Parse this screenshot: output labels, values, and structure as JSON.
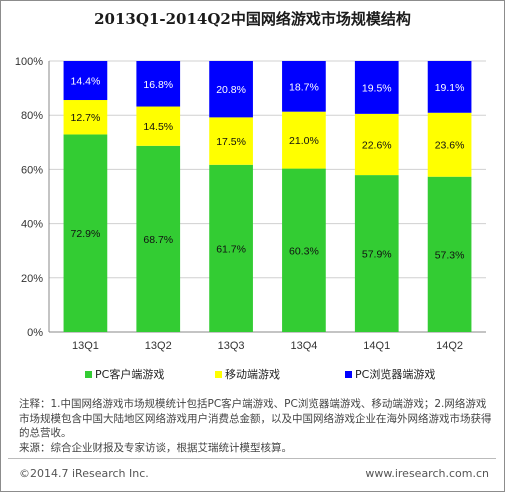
{
  "chart_data": {
    "type": "bar",
    "stacked": true,
    "title": "2013Q1-2014Q2中国网络游戏市场规模结构",
    "categories": [
      "13Q1",
      "13Q2",
      "13Q3",
      "13Q4",
      "14Q1",
      "14Q2"
    ],
    "series": [
      {
        "name": "PC客户端游戏",
        "color": "#33cc33",
        "values": [
          72.9,
          68.7,
          61.7,
          60.3,
          57.9,
          57.3
        ],
        "labels": [
          "72.9%",
          "68.7%",
          "61.7%",
          "60.3%",
          "57.9%",
          "57.3%"
        ]
      },
      {
        "name": "移动端游戏",
        "color": "#ffff00",
        "values": [
          12.7,
          14.5,
          17.5,
          21.0,
          22.6,
          23.6
        ],
        "labels": [
          "12.7%",
          "14.5%",
          "17.5%",
          "21.0%",
          "22.6%",
          "23.6%"
        ]
      },
      {
        "name": "PC浏览器端游戏",
        "color": "#0000ff",
        "values": [
          14.4,
          16.8,
          20.8,
          18.7,
          19.5,
          19.1
        ],
        "labels": [
          "14.4%",
          "16.8%",
          "20.8%",
          "18.7%",
          "19.5%",
          "19.1%"
        ]
      }
    ],
    "ylim": [
      0,
      100
    ],
    "yticks": [
      "0%",
      "20%",
      "40%",
      "60%",
      "80%",
      "100%"
    ],
    "grid": true,
    "legend_position": "bottom"
  },
  "notes": {
    "note": "注释：1.中国网络游戏市场规模统计包括PC客户端游戏、PC浏览器端游戏、移动端游戏；2.网络游戏市场规模包含中国大陆地区网络游戏用户消费总金额，以及中国网络游戏企业在海外网络游戏市场获得的总营收。",
    "source": "来源：综合企业财报及专家访谈，根据艾瑞统计模型核算。"
  },
  "footer": {
    "copyright": "©2014.7 iResearch Inc.",
    "website": "www.iresearch.com.cn"
  }
}
